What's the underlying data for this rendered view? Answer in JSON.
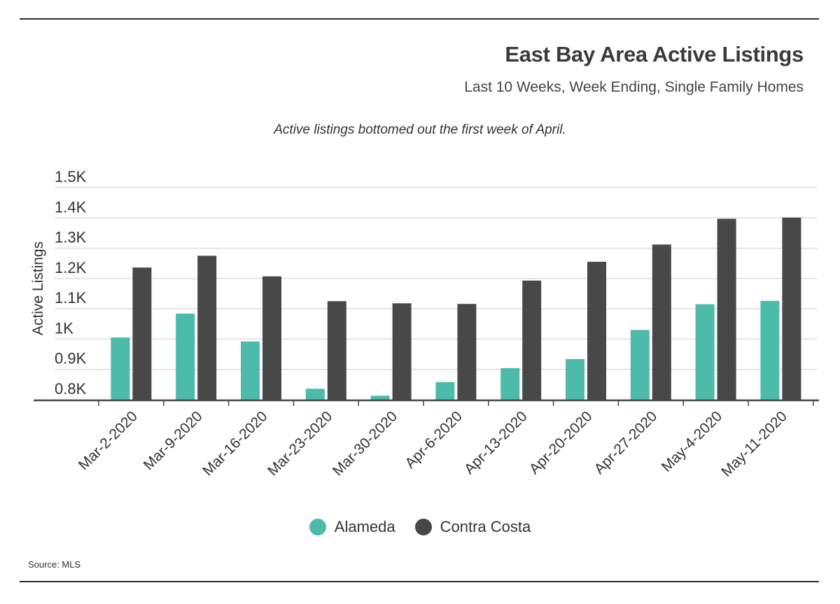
{
  "title": "East Bay Area Active Listings",
  "subtitle": "Last 10 Weeks, Week Ending, Single Family Homes",
  "annotation": "Active listings bottomed out the first week of April.",
  "source": "Source: MLS",
  "colors": {
    "alameda": "#4dbba9",
    "contra_costa": "#484848",
    "grid": "#dedede",
    "axis": "#444444"
  },
  "chart_data": {
    "type": "bar",
    "categories": [
      "Mar-2-2020",
      "Mar-9-2020",
      "Mar-16-2020",
      "Mar-23-2020",
      "Mar-30-2020",
      "Apr-6-2020",
      "Apr-13-2020",
      "Apr-20-2020",
      "Apr-27-2020",
      "May-4-2020",
      "May-11-2020"
    ],
    "series": [
      {
        "name": "Alameda",
        "values": [
          1005,
          1084,
          992,
          836,
          813,
          858,
          904,
          934,
          1030,
          1115,
          1126
        ]
      },
      {
        "name": "Contra Costa",
        "values": [
          1236,
          1275,
          1207,
          1125,
          1118,
          1116,
          1193,
          1255,
          1312,
          1397,
          1401
        ]
      }
    ],
    "ylabel": "Active Listings",
    "xlabel": "",
    "ylim": [
      800,
      1500
    ],
    "yticks": [
      800,
      900,
      1000,
      1100,
      1200,
      1300,
      1400,
      1500
    ],
    "ytick_labels": [
      "0.8K",
      "0.9K",
      "1K",
      "1.1K",
      "1.2K",
      "1.3K",
      "1.4K",
      "1.5K"
    ],
    "grid": true,
    "legend": "bottom-center"
  }
}
